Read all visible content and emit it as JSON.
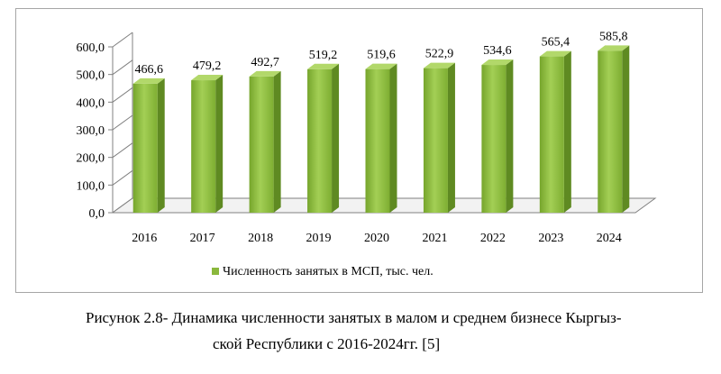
{
  "chart_data": {
    "type": "bar",
    "categories": [
      "2016",
      "2017",
      "2018",
      "2019",
      "2020",
      "2021",
      "2022",
      "2023",
      "2024"
    ],
    "series": [
      {
        "name": "Численность занятых в МСП, тыс. чел.",
        "values": [
          466.6,
          479.2,
          492.7,
          519.2,
          519.6,
          522.9,
          534.6,
          565.4,
          585.8
        ]
      }
    ],
    "data_labels": [
      "466,6",
      "479,2",
      "492,7",
      "519,2",
      "519,6",
      "522,9",
      "534,6",
      "565,4",
      "585,8"
    ],
    "y_ticks": [
      "0,0",
      "100,0",
      "200,0",
      "300,0",
      "400,0",
      "500,0",
      "600,0"
    ],
    "ylim": [
      0,
      600
    ],
    "title": "",
    "xlabel": "",
    "ylabel": "",
    "legend_position": "bottom",
    "style": "3d-bar",
    "colors": {
      "bar_front": "#8ab83c",
      "bar_side": "#5f8a22",
      "bar_top": "#b2d86a",
      "axis": "#808080"
    }
  },
  "caption": {
    "line1": "Рисунок 2.8- Динамика численности занятых в малом и среднем бизнесе Кыргыз-",
    "line2": "ской Республики с 2016-2024гг. [5]"
  }
}
